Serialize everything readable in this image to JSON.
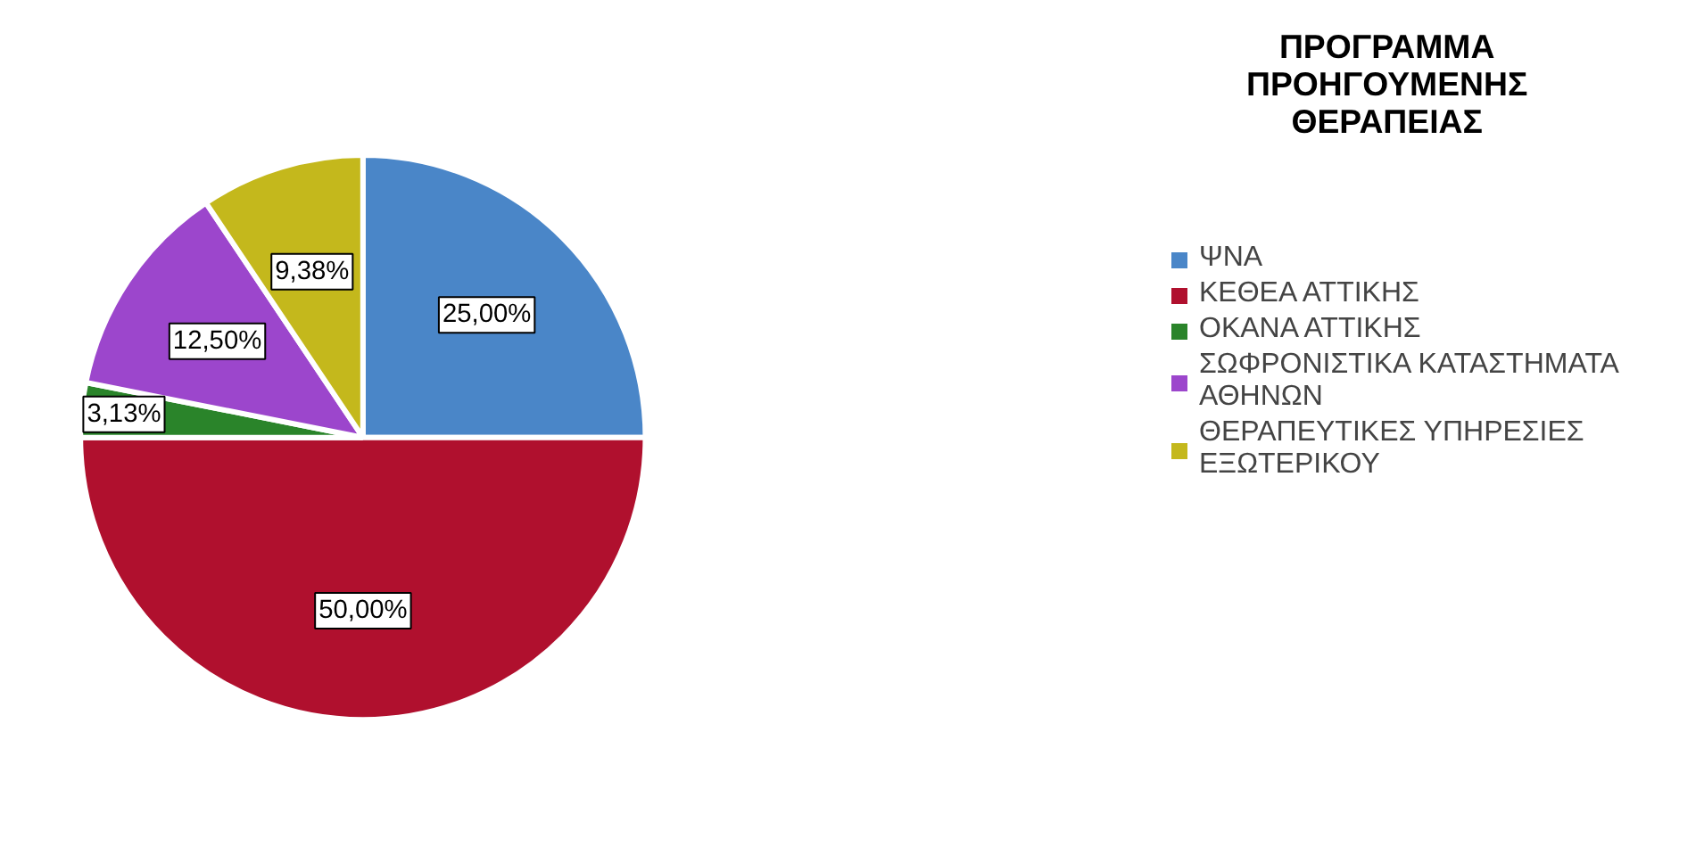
{
  "chart_data": {
    "type": "pie",
    "legend_title": "ΠΡΟΓΡΑΜΜΑ ΠΡΟΗΓΟΥΜΕΝΗΣ ΘΕΡΑΠΕΙΑΣ",
    "categories": [
      "ΨΝΑ",
      "ΚΕΘΕΑ ΑΤΤΙΚΗΣ",
      "ΟΚΑΝΑ ΑΤΤΙΚΗΣ",
      "ΣΩΦΡΟΝΙΣΤΙΚΑ ΚΑΤΑΣΤΗΜΑΤΑ ΑΘΗΝΩΝ",
      "ΘΕΡΑΠΕΥΤΙΚΕΣ ΥΠΗΡΕΣΙΕΣ ΕΞΩΤΕΡΙΚΟΥ"
    ],
    "values": [
      25.0,
      50.0,
      3.13,
      12.5,
      9.38
    ],
    "colors": [
      "#4a86c8",
      "#b0102e",
      "#2a842a",
      "#9c46cc",
      "#c4b81c"
    ],
    "value_labels": [
      "25,00%",
      "50,00%",
      "3,13%",
      "12,50%",
      "9,38%"
    ],
    "legend": "right"
  }
}
